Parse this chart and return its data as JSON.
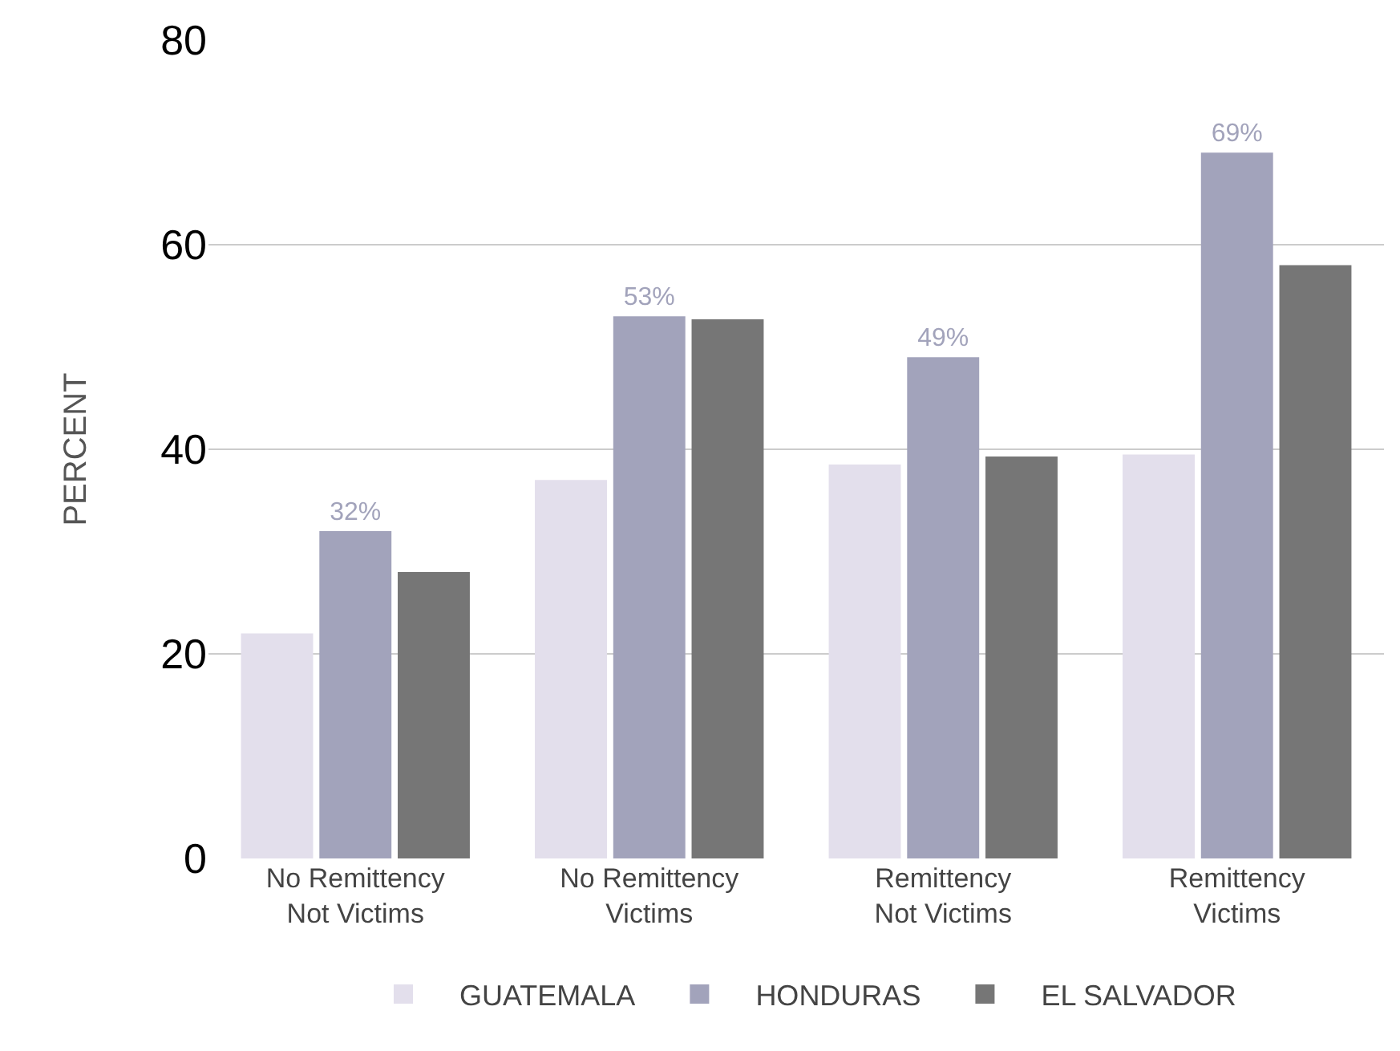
{
  "chart_data": {
    "type": "bar",
    "ylabel": "PERCENT",
    "categories": [
      "No Remittency\nNot Victims",
      "No Remittency\nVictims",
      "Remittency\nNot Victims",
      "Remittency\nVictims"
    ],
    "series": [
      {
        "name": "GUATEMALA",
        "color": "#e3dfec",
        "values": [
          22,
          37,
          38.5,
          39.5
        ]
      },
      {
        "name": "HONDURAS",
        "color": "#a2a3bb",
        "values": [
          32,
          53,
          49,
          69
        ],
        "value_labels": [
          "32%",
          "53%",
          "49%",
          "69%"
        ]
      },
      {
        "name": "EL SALVADOR",
        "color": "#767676",
        "values": [
          28,
          52.7,
          39.3,
          58
        ]
      }
    ],
    "ylim": [
      0,
      80
    ],
    "yticks": [
      0,
      20,
      40,
      60,
      80
    ],
    "grid": "y",
    "legend": "bottom"
  }
}
